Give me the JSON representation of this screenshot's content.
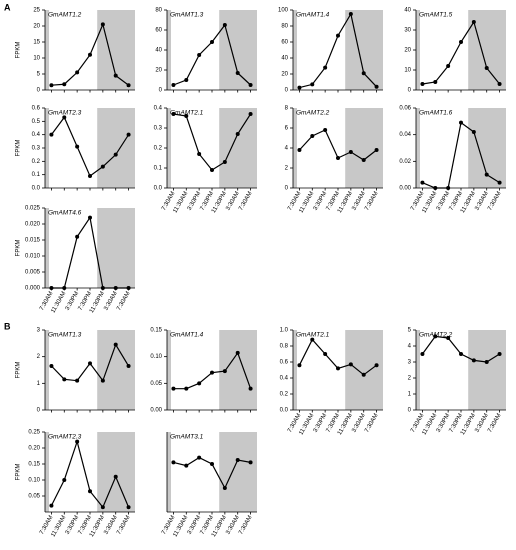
{
  "panels": [
    "A",
    "B"
  ],
  "chart_data": [
    {
      "type": "line",
      "title": "GmAMT1.2",
      "ylabel": "FPKM",
      "color": "#000000",
      "ylim": [
        0,
        25
      ],
      "yticks": [
        0,
        5,
        10,
        15,
        20,
        25
      ],
      "values": [
        1.5,
        1.8,
        5.5,
        11,
        20.5,
        4.5,
        1.5
      ]
    },
    {
      "type": "line",
      "title": "GmAMT1.3",
      "color": "#000000",
      "ylim": [
        0,
        80
      ],
      "yticks": [
        0,
        20,
        40,
        60,
        80
      ],
      "values": [
        5,
        10,
        35,
        48,
        65,
        17,
        5
      ]
    },
    {
      "type": "line",
      "title": "GmAMT1.4",
      "color": "#000000",
      "ylim": [
        0,
        100
      ],
      "yticks": [
        0,
        20,
        40,
        60,
        80,
        100
      ],
      "values": [
        3,
        7,
        28,
        68,
        95,
        21,
        4
      ]
    },
    {
      "type": "line",
      "title": "GmAMT1.5",
      "color": "#000000",
      "ylim": [
        0,
        40
      ],
      "yticks": [
        0,
        10,
        20,
        30,
        40
      ],
      "values": [
        3,
        4,
        12,
        24,
        34,
        11,
        3
      ]
    },
    {
      "type": "line",
      "title": "GmAMT2.3",
      "ylabel": "FPKM",
      "color": "#000000",
      "ylim": [
        0,
        0.6
      ],
      "yticks": [
        {
          "value": 0,
          "label": "0.0"
        },
        0.1,
        0.2,
        0.3,
        0.4,
        0.5,
        0.6
      ],
      "values": [
        0.4,
        0.53,
        0.31,
        0.09,
        0.16,
        0.25,
        0.4
      ]
    },
    {
      "type": "line",
      "title": "GmAMT2.1",
      "color": "#000000",
      "ylim": [
        0,
        0.4
      ],
      "yticks": [
        {
          "value": 0,
          "label": "0.0"
        },
        0.1,
        0.2,
        0.3,
        0.4
      ],
      "values": [
        0.37,
        0.36,
        0.17,
        0.09,
        0.13,
        0.27,
        0.37
      ],
      "categories": [
        "7:30AM",
        "11:30AM",
        "3:30PM",
        "7:30PM",
        "11:30PM",
        "3:30AM",
        "7:30AM"
      ]
    },
    {
      "type": "line",
      "title": "GmAMT2.2",
      "color": "#000000",
      "ylim": [
        0,
        8
      ],
      "yticks": [
        0,
        2,
        4,
        6,
        8
      ],
      "values": [
        3.8,
        5.2,
        5.8,
        3,
        3.6,
        2.8,
        3.8
      ],
      "categories": [
        "7:30AM",
        "11:30AM",
        "3:30PM",
        "7:30PM",
        "11:30PM",
        "3:30AM",
        "7:30AM"
      ]
    },
    {
      "type": "line",
      "title": "GmAMT1.6",
      "color": "#000000",
      "ylim": [
        0,
        0.06
      ],
      "yticks": [
        {
          "value": 0,
          "label": "0.00"
        },
        0.02,
        0.04,
        0.06
      ],
      "values": [
        0.004,
        0,
        0,
        0.049,
        0.042,
        0.01,
        0.004
      ],
      "categories": [
        "7:30AM",
        "11:30AM",
        "3:30PM",
        "7:30PM",
        "11:30PM",
        "3:30AM",
        "7:30AM"
      ]
    },
    {
      "type": "line",
      "title": "GmAMT4.6",
      "ylabel": "FPKM",
      "color": "#000000",
      "ylim": [
        0,
        0.025
      ],
      "yticks": [
        {
          "value": 0,
          "label": "0.000"
        },
        0.005,
        {
          "value": 0.01,
          "label": "0.010"
        },
        0.015,
        {
          "value": 0.02,
          "label": "0.020"
        },
        0.025
      ],
      "values": [
        0,
        0,
        0.016,
        0.022,
        0,
        0,
        0
      ],
      "categories": [
        "7:30AM",
        "11:30AM",
        "3:30PM",
        "7:30PM",
        "11:30PM",
        "3:30AM",
        "7:30AM"
      ]
    },
    {
      "type": "line",
      "title": "GmAMT1.3",
      "ylabel": "FPKM",
      "color": "#000000",
      "ylim": [
        0,
        3
      ],
      "yticks": [
        0,
        1,
        2,
        3
      ],
      "values": [
        1.65,
        1.15,
        1.1,
        1.75,
        1.1,
        2.45,
        1.65
      ]
    },
    {
      "type": "line",
      "title": "GmAMT1.4",
      "color": "#000000",
      "ylim": [
        0,
        0.15
      ],
      "yticks": [
        {
          "value": 0,
          "label": "0.00"
        },
        0.05,
        {
          "value": 0.1,
          "label": "0.10"
        },
        0.15
      ],
      "values": [
        0.04,
        0.04,
        0.05,
        0.07,
        0.073,
        0.107,
        0.04
      ]
    },
    {
      "type": "line",
      "title": "GmAMT2.1",
      "color": "#000000",
      "ylim": [
        0,
        1
      ],
      "yticks": [
        {
          "value": 0,
          "label": "0.0"
        },
        0.2,
        0.4,
        0.6,
        0.8,
        {
          "value": 1,
          "label": "1.0"
        }
      ],
      "values": [
        0.56,
        0.88,
        0.7,
        0.52,
        0.57,
        0.44,
        0.56
      ],
      "categories": [
        "7:30AM",
        "11:30AM",
        "3:30PM",
        "7:30PM",
        "11:30PM",
        "3:30AM",
        "7:30AM"
      ]
    },
    {
      "type": "line",
      "title": "GmAMT2.2",
      "color": "#000000",
      "ylim": [
        0,
        5
      ],
      "yticks": [
        0,
        1,
        2,
        3,
        4,
        5
      ],
      "values": [
        3.5,
        4.6,
        4.5,
        3.5,
        3.1,
        3.0,
        3.5
      ],
      "categories": [
        "7:30AM",
        "11:30AM",
        "3:30PM",
        "7:30PM",
        "11:30PM",
        "3:30AM",
        "7:30AM"
      ]
    },
    {
      "type": "line",
      "title": "GmAMT2.3",
      "ylabel": "FPKM",
      "color": "#000000",
      "ylim": [
        0,
        0.25
      ],
      "yticks": [
        0.05,
        {
          "value": 0.1,
          "label": "0.10"
        },
        0.15,
        {
          "value": 0.2,
          "label": "0.20"
        },
        0.25
      ],
      "values": [
        0.02,
        0.1,
        0.22,
        0.065,
        0.015,
        0.11,
        0.015
      ],
      "categories": [
        "7:30AM",
        "11:30AM",
        "3:30PM",
        "7:30PM",
        "11:30PM",
        "3:30AM",
        "7:30AM"
      ]
    },
    {
      "type": "line",
      "title": "GmAMT3.1",
      "color": "#000000",
      "ylim": [
        0,
        1
      ],
      "yticks": [],
      "values": [
        0.62,
        0.58,
        0.68,
        0.6,
        0.3,
        0.65,
        0.62
      ],
      "categories": [
        "7:30AM",
        "11:30AM",
        "3:30PM",
        "7:30PM",
        "11:30PM",
        "3:30AM",
        "7:30AM"
      ]
    }
  ]
}
